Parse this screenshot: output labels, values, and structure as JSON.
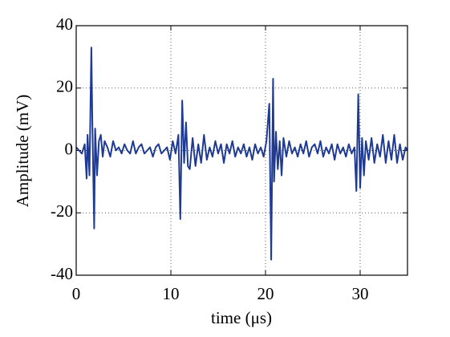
{
  "chart_data": {
    "type": "line",
    "xlabel": "time (μs)",
    "ylabel": "Amplitude (mV)",
    "xlim": [
      0,
      35
    ],
    "xticks": [
      0,
      10,
      20,
      30
    ],
    "ylim": [
      -40,
      40
    ],
    "yticks": [
      -40,
      -20,
      0,
      20,
      40
    ],
    "grid": true,
    "series": [
      {
        "color": "#1f3a93",
        "x": [
          0,
          0.3,
          0.6,
          0.9,
          1.1,
          1.2,
          1.4,
          1.6,
          1.7,
          1.9,
          2.0,
          2.2,
          2.4,
          2.6,
          2.8,
          3.0,
          3.3,
          3.6,
          3.9,
          4.2,
          4.5,
          4.8,
          5.1,
          5.4,
          5.7,
          6.0,
          6.3,
          6.6,
          6.9,
          7.2,
          7.5,
          7.8,
          8.1,
          8.4,
          8.7,
          9.0,
          9.3,
          9.6,
          9.9,
          10.2,
          10.5,
          10.8,
          11.0,
          11.2,
          11.4,
          11.6,
          11.8,
          12.0,
          12.3,
          12.6,
          12.9,
          13.2,
          13.5,
          13.8,
          14.1,
          14.4,
          14.7,
          15.0,
          15.3,
          15.6,
          15.9,
          16.2,
          16.5,
          16.8,
          17.1,
          17.4,
          17.7,
          18.0,
          18.3,
          18.6,
          18.9,
          19.2,
          19.5,
          19.8,
          20.1,
          20.4,
          20.6,
          20.8,
          20.9,
          21.1,
          21.3,
          21.5,
          21.7,
          21.9,
          22.2,
          22.5,
          22.8,
          23.1,
          23.4,
          23.7,
          24.0,
          24.3,
          24.6,
          24.9,
          25.2,
          25.5,
          25.8,
          26.1,
          26.4,
          26.7,
          27.0,
          27.3,
          27.6,
          27.9,
          28.2,
          28.5,
          28.8,
          29.1,
          29.4,
          29.6,
          29.8,
          30.0,
          30.2,
          30.4,
          30.6,
          30.9,
          31.2,
          31.5,
          31.8,
          32.1,
          32.4,
          32.7,
          33.0,
          33.3,
          33.6,
          33.9,
          34.2,
          34.5,
          34.8,
          35.0
        ],
        "values": [
          1,
          0,
          -1,
          2,
          -9,
          5,
          -8,
          33,
          10,
          -25,
          7,
          -8,
          3,
          5,
          -2,
          3,
          1,
          -2,
          3,
          0,
          1,
          -1,
          2,
          0,
          -1,
          3,
          -1,
          1,
          2,
          -1,
          0,
          1,
          -2,
          1,
          2,
          -1,
          0,
          1,
          -3,
          3,
          -1,
          5,
          -22,
          16,
          -4,
          9,
          -5,
          -6,
          4,
          -5,
          2,
          -4,
          5,
          -3,
          1,
          -2,
          3,
          -1,
          2,
          -4,
          2,
          -1,
          3,
          -2,
          1,
          -1,
          2,
          -2,
          1,
          -3,
          2,
          -1,
          1,
          -2,
          3,
          15,
          -35,
          23,
          -10,
          6,
          -6,
          3,
          -8,
          4,
          -2,
          3,
          -1,
          1,
          -2,
          2,
          -1,
          3,
          -2,
          1,
          2,
          -1,
          3,
          -2,
          1,
          -1,
          2,
          -3,
          2,
          -1,
          1,
          -2,
          2,
          -1,
          1,
          -13,
          18,
          -12,
          4,
          -8,
          3,
          -3,
          4,
          -4,
          2,
          -2,
          5,
          -4,
          3,
          -3,
          5,
          -4,
          2,
          -3,
          1,
          0
        ]
      }
    ]
  }
}
